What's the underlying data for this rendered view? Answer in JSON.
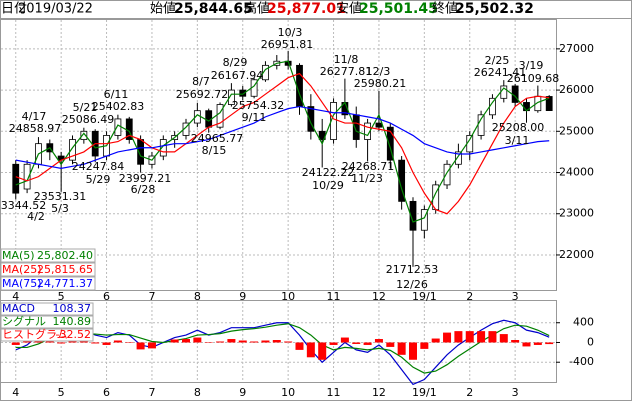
{
  "header": {
    "date_label": "日付",
    "date": "2019/03/22",
    "open_label": "始値",
    "open": "25,844.65",
    "high_label": "高値",
    "high": "25,877.01",
    "low_label": "安値",
    "low": "25,501.45",
    "close_label": "終値",
    "close": "25,502.32"
  },
  "chart_data": [
    {
      "type": "candlestick",
      "xlim": [
        -1.3,
        47.6
      ],
      "xticks": [
        {
          "value": 0,
          "label": "4"
        },
        {
          "value": 4,
          "label": "5"
        },
        {
          "value": 8,
          "label": "6"
        },
        {
          "value": 12,
          "label": "7"
        },
        {
          "value": 16,
          "label": "8"
        },
        {
          "value": 20,
          "label": "9"
        },
        {
          "value": 24,
          "label": "10"
        },
        {
          "value": 28,
          "label": "11"
        },
        {
          "value": 32,
          "label": "12"
        },
        {
          "value": 36,
          "label": "19/1"
        },
        {
          "value": 40,
          "label": "2"
        },
        {
          "value": 44,
          "label": "3"
        }
      ],
      "ylim": [
        21150,
        27700
      ],
      "yticks": [
        27000,
        26000,
        25000,
        24000,
        23000,
        22000
      ],
      "grid": true,
      "open": [
        24200,
        23600,
        24200,
        24700,
        24400,
        24300,
        24800,
        25000,
        24400,
        24900,
        25300,
        24800,
        24200,
        24400,
        24800,
        24900,
        25200,
        25500,
        25100,
        25650,
        26000,
        25850,
        26250,
        26600,
        26700,
        26600,
        25600,
        25000,
        24800,
        25700,
        25400,
        24800,
        25200,
        25100,
        24300,
        23300,
        22600,
        23100,
        23700,
        24200,
        24500,
        24900,
        25400,
        25800,
        26100,
        25700,
        25500,
        25844.65
      ],
      "high": [
        24300,
        24300,
        24858.97,
        24800,
        24500,
        24900,
        25086.49,
        25050,
        25000,
        25402.83,
        25350,
        24900,
        24500,
        24900,
        25000,
        25300,
        25692.72,
        25550,
        25700,
        26167.94,
        26100,
        26300,
        26700,
        26850,
        26951.81,
        26650,
        25900,
        25300,
        25800,
        26277.81,
        25600,
        25300,
        25980.21,
        25200,
        24400,
        23400,
        23200,
        23800,
        24300,
        24700,
        25000,
        25500,
        25900,
        26241.41,
        26150,
        25800,
        26109.68,
        25877.01
      ],
      "low": [
        23344.52,
        23500,
        24100,
        24300,
        23531.31,
        24200,
        24700,
        24247.84,
        24300,
        24800,
        24700,
        23997.21,
        24100,
        24300,
        24600,
        24800,
        25100,
        24965.77,
        25050,
        25600,
        25754.32,
        25800,
        26200,
        26500,
        26500,
        25400,
        24800,
        24122.22,
        24700,
        25300,
        24600,
        24268.71,
        25000,
        24100,
        23100,
        21712.53,
        22400,
        23000,
        23600,
        24100,
        24300,
        24800,
        25300,
        25700,
        25600,
        25208,
        25450,
        25501.45
      ],
      "close": [
        23500,
        24200,
        24700,
        24500,
        24300,
        24800,
        25000,
        24400,
        24900,
        25300,
        24800,
        24200,
        24400,
        24800,
        24900,
        25200,
        25500,
        25100,
        25650,
        26000,
        25850,
        26250,
        26600,
        26700,
        26600,
        25600,
        25000,
        24800,
        25700,
        25400,
        24800,
        25200,
        25100,
        24300,
        23300,
        22600,
        23100,
        23700,
        24200,
        24500,
        24900,
        25400,
        25800,
        26100,
        25700,
        25500,
        25850,
        25502.32
      ],
      "up_color": "#ffffff",
      "down_color": "#000000",
      "series": [
        {
          "name": "MA(5)",
          "color": "#008000",
          "legend_label": "25,802.40",
          "values": [
            23700,
            23800,
            24450,
            24600,
            24200,
            24600,
            24950,
            24600,
            24650,
            25150,
            25000,
            24400,
            24300,
            24650,
            24850,
            25100,
            25400,
            25250,
            25450,
            25900,
            25900,
            26100,
            26500,
            26650,
            26700,
            25900,
            25200,
            24700,
            25400,
            25700,
            25000,
            24900,
            25400,
            24600,
            23600,
            22800,
            22900,
            23500,
            24000,
            24400,
            24800,
            25300,
            25700,
            26050,
            25850,
            25500,
            25700,
            25802.4
          ]
        },
        {
          "name": "MA(25)",
          "color": "#ff0000",
          "legend_label": "25,815.65",
          "values": [
            23900,
            23800,
            23900,
            24100,
            24300,
            24400,
            24500,
            24700,
            24700,
            24750,
            24900,
            24800,
            24600,
            24500,
            24500,
            24700,
            24900,
            25100,
            25200,
            25400,
            25600,
            25700,
            25900,
            26100,
            26300,
            26400,
            26100,
            25700,
            25300,
            25200,
            25200,
            25100,
            25050,
            25000,
            24600,
            24000,
            23500,
            23100,
            23000,
            23300,
            23700,
            24200,
            24700,
            25200,
            25600,
            25800,
            25850,
            25815.65
          ]
        },
        {
          "name": "MA(75)",
          "color": "#0000ff",
          "legend_label": "24,771.37",
          "values": [
            24300,
            24250,
            24200,
            24150,
            24100,
            24150,
            24200,
            24300,
            24400,
            24500,
            24550,
            24600,
            24600,
            24650,
            24700,
            24700,
            24750,
            24800,
            24900,
            25000,
            25100,
            25200,
            25350,
            25450,
            25550,
            25600,
            25550,
            25500,
            25450,
            25450,
            25400,
            25350,
            25300,
            25200,
            25050,
            24900,
            24700,
            24600,
            24500,
            24450,
            24450,
            24500,
            24550,
            24600,
            24650,
            24700,
            24750,
            24771.37
          ]
        }
      ],
      "annotations": [
        {
          "date": "4/17",
          "value": "24858.97"
        },
        {
          "date": "4/2",
          "value": "23344.52"
        },
        {
          "date": "5/3",
          "value": "23531.31"
        },
        {
          "date": "5/21",
          "value": "25086.49"
        },
        {
          "date": "6/11",
          "value": "25402.83"
        },
        {
          "date": "5/29",
          "value": "24247.84"
        },
        {
          "date": "6/28",
          "value": "23997.21"
        },
        {
          "date": "8/7",
          "value": "25692.72"
        },
        {
          "date": "8/29",
          "value": "26167.94"
        },
        {
          "date": "8/15",
          "value": "24965.77"
        },
        {
          "date": "9/11",
          "value": "25754.32"
        },
        {
          "date": "10/3",
          "value": "26951.81"
        },
        {
          "date": "11/8",
          "value": "26277.81"
        },
        {
          "date": "12/3",
          "value": "25980.21"
        },
        {
          "date": "10/29",
          "value": "24122.22"
        },
        {
          "date": "11/23",
          "value": "24268.71"
        },
        {
          "date": "12/26",
          "value": "21712.53"
        },
        {
          "date": "2/25",
          "value": "26241.41"
        },
        {
          "date": "3/19",
          "value": "26109.68"
        },
        {
          "date": "3/11",
          "value": "25208.00"
        }
      ]
    },
    {
      "type": "macd",
      "xlim": [
        -1.3,
        47.6
      ],
      "xticks": [
        {
          "value": 0,
          "label": "4"
        },
        {
          "value": 4,
          "label": "5"
        },
        {
          "value": 8,
          "label": "6"
        },
        {
          "value": 12,
          "label": "7"
        },
        {
          "value": 16,
          "label": "8"
        },
        {
          "value": 20,
          "label": "9"
        },
        {
          "value": 24,
          "label": "10"
        },
        {
          "value": 28,
          "label": "11"
        },
        {
          "value": 32,
          "label": "12"
        },
        {
          "value": 36,
          "label": "19/1"
        },
        {
          "value": 40,
          "label": "2"
        },
        {
          "value": 44,
          "label": "3"
        }
      ],
      "ylim": [
        -760,
        820
      ],
      "yticks": [
        400,
        0,
        -400
      ],
      "grid": true,
      "series": [
        {
          "name": "MACD",
          "color": "#0000cc",
          "values": [
            -150,
            -50,
            150,
            250,
            100,
            150,
            250,
            150,
            100,
            200,
            150,
            -50,
            -100,
            0,
            100,
            150,
            250,
            150,
            200,
            300,
            300,
            300,
            350,
            400,
            400,
            150,
            -150,
            -400,
            -200,
            0,
            -150,
            -200,
            -50,
            -250,
            -550,
            -850,
            -750,
            -500,
            -250,
            -50,
            100,
            250,
            380,
            450,
            400,
            250,
            200,
            108.37
          ]
        },
        {
          "name": "シグナル",
          "color": "#008000",
          "values": [
            -100,
            -100,
            -30,
            80,
            120,
            130,
            180,
            170,
            150,
            160,
            160,
            90,
            20,
            0,
            40,
            80,
            150,
            160,
            180,
            230,
            260,
            280,
            310,
            350,
            380,
            300,
            150,
            -50,
            -150,
            -100,
            -120,
            -150,
            -120,
            -160,
            -300,
            -500,
            -620,
            -580,
            -450,
            -280,
            -130,
            20,
            150,
            280,
            350,
            330,
            250,
            140.89
          ]
        },
        {
          "name": "ヒストグラム",
          "type": "bar",
          "color": "#ff0000",
          "values": [
            -50,
            50,
            180,
            170,
            -20,
            20,
            70,
            -20,
            -50,
            40,
            -10,
            -140,
            -120,
            0,
            60,
            70,
            100,
            -10,
            20,
            70,
            40,
            20,
            40,
            50,
            20,
            -150,
            -300,
            -350,
            -50,
            100,
            -30,
            -50,
            70,
            -90,
            -250,
            -350,
            -130,
            80,
            200,
            230,
            230,
            230,
            230,
            170,
            50,
            -80,
            -50,
            -32.52
          ]
        }
      ]
    }
  ]
}
